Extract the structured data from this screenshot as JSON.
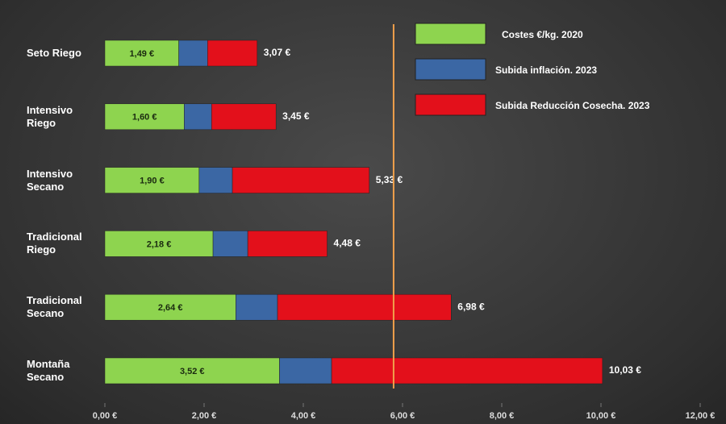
{
  "chart_data": {
    "type": "stacked-bar-horizontal",
    "categories": [
      "Seto Riego",
      "Intensivo Riego",
      "Intensivo Secano",
      "Tradicional Riego",
      "Tradicional Secano",
      "Montaña Secano"
    ],
    "series": [
      {
        "name": "Costes €/kg. 2020",
        "color": "#8ed44f",
        "values": [
          1.49,
          1.6,
          1.9,
          2.18,
          2.64,
          3.52
        ],
        "value_labels": [
          "1,49 €",
          "1,60 €",
          "1,90 €",
          "2,18 €",
          "2,64 €",
          "3,52 €"
        ]
      },
      {
        "name": "Subida inflación. 2023",
        "color": "#3b67a4",
        "values": [
          0.58,
          0.55,
          0.67,
          0.7,
          0.84,
          1.05
        ]
      },
      {
        "name": "Subida Reducción Cosecha. 2023",
        "color": "#e3101b",
        "values": [
          1.0,
          1.3,
          2.76,
          1.6,
          3.5,
          5.46
        ]
      }
    ],
    "totals": [
      3.07,
      3.45,
      5.33,
      4.48,
      6.98,
      10.03
    ],
    "total_labels": [
      "3,07 €",
      "3,45 €",
      "5,33 €",
      "4,48 €",
      "6,98 €",
      "10,03 €"
    ],
    "reference_line": {
      "value": 5.82,
      "color": "#f0a04b"
    },
    "xlim": [
      0,
      12
    ],
    "xticks": [
      {
        "value": 0,
        "label": "0,00 €"
      },
      {
        "value": 2,
        "label": "2,00 €"
      },
      {
        "value": 4,
        "label": "4,00 €"
      },
      {
        "value": 6,
        "label": "6,00 €"
      },
      {
        "value": 8,
        "label": "8,00 €"
      },
      {
        "value": 10,
        "label": "10,00 €"
      },
      {
        "value": 12,
        "label": "12,00 €"
      }
    ]
  }
}
